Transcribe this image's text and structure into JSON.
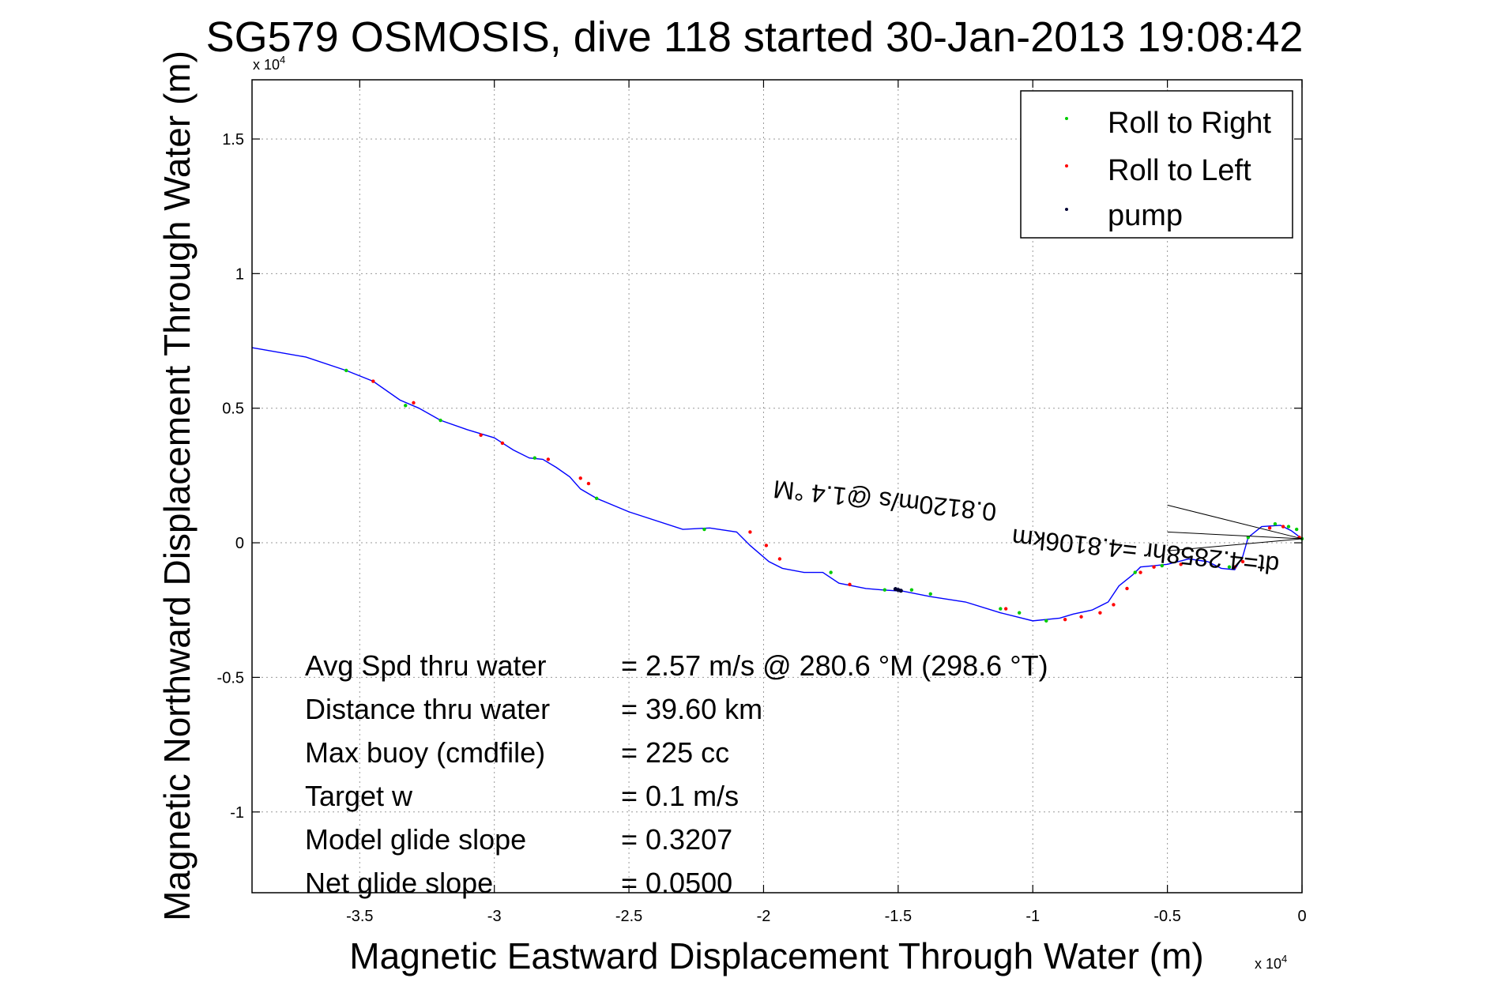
{
  "chart_data": {
    "type": "line",
    "title": "SG579 OSMOSIS, dive 118 started 30-Jan-2013 19:08:42",
    "xlabel": "Magnetic Eastward Displacement Through Water (m)",
    "ylabel": "Magnetic Northward Displacement Through Water (m)",
    "x_multiplier": "x 10",
    "x_multiplier_exp": "4",
    "y_multiplier": "x 10",
    "y_multiplier_exp": "4",
    "xlim": [
      -3.9,
      0
    ],
    "ylim": [
      -1.3,
      1.72
    ],
    "xticks": [
      -3.5,
      -3,
      -2.5,
      -2,
      -1.5,
      -1,
      -0.5,
      0
    ],
    "xtick_labels": [
      "-3.5",
      "-3",
      "-2.5",
      "-2",
      "-1.5",
      "-1",
      "-0.5",
      "0"
    ],
    "yticks": [
      -1,
      -0.5,
      0,
      0.5,
      1,
      1.5
    ],
    "ytick_labels": [
      "-1",
      "-0.5",
      "0",
      "0.5",
      "1",
      "1.5"
    ],
    "grid": true,
    "legend_position": "top-right",
    "colors": {
      "track": "#0000ff",
      "roll_right": "#00cc00",
      "roll_left": "#ff0000",
      "pump": "#000033"
    },
    "legend": [
      {
        "name": "Roll to Right",
        "color": "#00cc00"
      },
      {
        "name": "Roll to Left",
        "color": "#ff0000"
      },
      {
        "name": "pump",
        "color": "#000033"
      }
    ],
    "track": {
      "x": [
        -3.9,
        -3.7,
        -3.55,
        -3.45,
        -3.35,
        -3.28,
        -3.2,
        -3.1,
        -3.0,
        -2.93,
        -2.87,
        -2.82,
        -2.77,
        -2.72,
        -2.68,
        -2.62,
        -2.5,
        -2.3,
        -2.2,
        -2.1,
        -2.05,
        -1.98,
        -1.93,
        -1.85,
        -1.78,
        -1.72,
        -1.62,
        -1.56,
        -1.48,
        -1.38,
        -1.25,
        -1.12,
        -1.0,
        -0.9,
        -0.85,
        -0.78,
        -0.72,
        -0.68,
        -0.63,
        -0.6,
        -0.55,
        -0.5,
        -0.42,
        -0.35,
        -0.3,
        -0.25,
        -0.22,
        -0.2,
        -0.15,
        -0.08,
        -0.04,
        0.0
      ],
      "y": [
        0.725,
        0.69,
        0.64,
        0.6,
        0.53,
        0.5,
        0.455,
        0.42,
        0.39,
        0.345,
        0.315,
        0.31,
        0.28,
        0.245,
        0.2,
        0.165,
        0.115,
        0.05,
        0.055,
        0.04,
        -0.01,
        -0.07,
        -0.095,
        -0.11,
        -0.11,
        -0.15,
        -0.17,
        -0.175,
        -0.18,
        -0.2,
        -0.22,
        -0.26,
        -0.29,
        -0.28,
        -0.265,
        -0.25,
        -0.22,
        -0.16,
        -0.12,
        -0.09,
        -0.085,
        -0.08,
        -0.06,
        -0.07,
        -0.095,
        -0.1,
        -0.05,
        0.02,
        0.06,
        0.065,
        0.045,
        0.015
      ]
    },
    "roll_right_x": [
      -3.55,
      -3.33,
      -3.2,
      -2.85,
      -2.62,
      -2.22,
      -1.75,
      -1.55,
      -1.45,
      -1.38,
      -1.12,
      -1.05,
      -0.95,
      -0.62,
      -0.52,
      -0.27,
      -0.2,
      -0.1,
      -0.05,
      -0.02,
      0.0
    ],
    "roll_right_y": [
      0.64,
      0.51,
      0.455,
      0.315,
      0.165,
      0.05,
      -0.11,
      -0.175,
      -0.175,
      -0.19,
      -0.245,
      -0.26,
      -0.29,
      -0.11,
      -0.085,
      -0.09,
      0.02,
      0.07,
      0.06,
      0.05,
      0.015
    ],
    "roll_left_x": [
      -3.45,
      -3.3,
      -3.05,
      -2.97,
      -2.8,
      -2.68,
      -2.65,
      -2.05,
      -1.99,
      -1.94,
      -1.68,
      -1.1,
      -0.88,
      -0.82,
      -0.75,
      -0.7,
      -0.65,
      -0.6,
      -0.55,
      -0.45,
      -0.25,
      -0.22,
      -0.12,
      -0.07,
      -0.01
    ],
    "roll_left_y": [
      0.6,
      0.52,
      0.4,
      0.37,
      0.31,
      0.24,
      0.22,
      0.04,
      -0.01,
      -0.06,
      -0.155,
      -0.245,
      -0.285,
      -0.275,
      -0.26,
      -0.23,
      -0.17,
      -0.11,
      -0.09,
      -0.08,
      -0.09,
      -0.07,
      0.055,
      0.06,
      0.02
    ],
    "pump_x": [
      -1.51,
      -1.5,
      -1.49
    ],
    "pump_y": [
      -0.172,
      -0.175,
      -0.178
    ],
    "heading_line_label": "0.8120m/s @1.4 °M",
    "heading_line_label2": "dt=4.2858hr =4.8106km",
    "stats": [
      {
        "label": "Avg Spd thru water",
        "value": "=  2.57 m/s @ 280.6 °M (298.6 °T)"
      },
      {
        "label": "Distance thru water",
        "value": "= 39.60 km"
      },
      {
        "label": "Max buoy (cmdfile)",
        "value": "= 225 cc"
      },
      {
        "label": "Target w",
        "value": "= 0.1 m/s"
      },
      {
        "label": "Model glide slope",
        "value": "= 0.3207"
      },
      {
        "label": "Net glide slope",
        "value": "= 0.0500"
      }
    ]
  }
}
